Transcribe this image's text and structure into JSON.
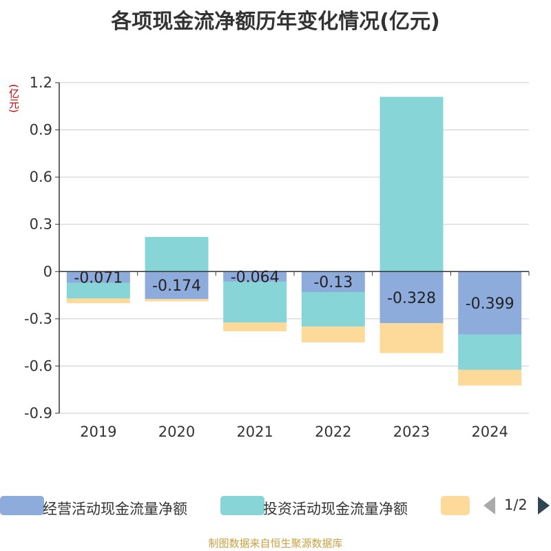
{
  "chart_data": {
    "type": "bar",
    "stacked": true,
    "title": "各项现金流净额历年变化情况(亿元)",
    "y_unit": "(亿元)",
    "categories": [
      "2019",
      "2020",
      "2021",
      "2022",
      "2023",
      "2024"
    ],
    "ylim": [
      -0.9,
      1.2
    ],
    "yticks": [
      "1.2",
      "0.9",
      "0.6",
      "0.3",
      "0",
      "-0.3",
      "-0.6",
      "-0.9"
    ],
    "grid": true,
    "legend_position": "bottom",
    "series": [
      {
        "name": "经营活动现金流量净额",
        "color": "#8eacdb",
        "values": [
          -0.071,
          -0.174,
          -0.064,
          -0.13,
          -0.328,
          -0.399
        ],
        "labels": [
          "-0.071",
          "-0.174",
          "-0.064",
          "-0.13",
          "-0.328",
          "-0.399"
        ]
      },
      {
        "name": "投资活动现金流量净额",
        "color": "#88d5d8",
        "values": [
          -0.1,
          0.22,
          -0.26,
          -0.22,
          1.11,
          -0.225
        ]
      },
      {
        "name": "",
        "color": "#fdd99a",
        "values": [
          -0.03,
          -0.015,
          -0.055,
          -0.1,
          -0.19,
          -0.1
        ]
      }
    ]
  },
  "legend": {
    "items": [
      {
        "label": "经营活动现金流量净额",
        "color": "#8eacdb"
      },
      {
        "label": "投资活动现金流量净额",
        "color": "#88d5d8"
      },
      {
        "label": "",
        "color": "#fdd99a"
      }
    ],
    "pager_text": "1/2"
  },
  "footer": "制图数据来自恒生聚源数据库"
}
